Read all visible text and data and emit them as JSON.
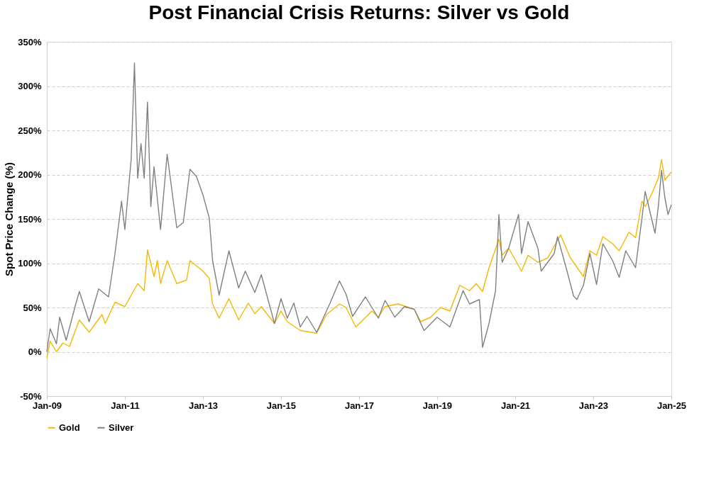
{
  "chart_data": {
    "type": "line",
    "title": "Post Financial Crisis Returns: Silver vs Gold",
    "ylabel": "Spot Price Change (%)",
    "xlim": [
      "2009-01",
      "2025-01"
    ],
    "xticks": [
      {
        "value": "2009-01",
        "label": "Jan-09"
      },
      {
        "value": "2011-01",
        "label": "Jan-11"
      },
      {
        "value": "2013-01",
        "label": "Jan-13"
      },
      {
        "value": "2015-01",
        "label": "Jan-15"
      },
      {
        "value": "2017-01",
        "label": "Jan-17"
      },
      {
        "value": "2019-01",
        "label": "Jan-19"
      },
      {
        "value": "2021-01",
        "label": "Jan-21"
      },
      {
        "value": "2023-01",
        "label": "Jan-23"
      },
      {
        "value": "2025-01",
        "label": "Jan-25"
      }
    ],
    "ylim": [
      -50,
      350
    ],
    "yticks": [
      {
        "value": -50,
        "label": "-50%"
      },
      {
        "value": 0,
        "label": "0%"
      },
      {
        "value": 50,
        "label": "50%"
      },
      {
        "value": 100,
        "label": "100%"
      },
      {
        "value": 150,
        "label": "150%"
      },
      {
        "value": 200,
        "label": "200%"
      },
      {
        "value": 250,
        "label": "250%"
      },
      {
        "value": 300,
        "label": "300%"
      },
      {
        "value": 350,
        "label": "350%"
      }
    ],
    "grid": "y",
    "legend": "bottom",
    "line_style": "solid",
    "marker": "none",
    "series": [
      {
        "name": "Gold",
        "color": "#f5b800",
        "x": [
          "2009-01",
          "2009-02",
          "2009-04",
          "2009-06",
          "2009-08",
          "2009-11",
          "2010-02",
          "2010-06",
          "2010-07",
          "2010-10",
          "2011-01",
          "2011-05",
          "2011-07",
          "2011-08",
          "2011-10",
          "2011-11",
          "2011-12",
          "2012-02",
          "2012-05",
          "2012-08",
          "2012-09",
          "2013-01",
          "2013-03",
          "2013-04",
          "2013-06",
          "2013-09",
          "2013-12",
          "2014-03",
          "2014-05",
          "2014-07",
          "2014-11",
          "2015-01",
          "2015-03",
          "2015-07",
          "2015-12",
          "2016-03",
          "2016-07",
          "2016-09",
          "2016-12",
          "2017-05",
          "2017-07",
          "2017-09",
          "2018-01",
          "2018-06",
          "2018-08",
          "2018-11",
          "2019-02",
          "2019-05",
          "2019-08",
          "2019-11",
          "2020-01",
          "2020-03",
          "2020-05",
          "2020-08",
          "2020-09",
          "2020-11",
          "2021-03",
          "2021-05",
          "2021-08",
          "2021-11",
          "2022-03",
          "2022-06",
          "2022-10",
          "2022-12",
          "2023-02",
          "2023-04",
          "2023-07",
          "2023-09",
          "2023-12",
          "2024-02",
          "2024-04",
          "2024-05",
          "2024-07",
          "2024-09",
          "2024-10",
          "2024-11",
          "2025-01"
        ],
        "values": [
          -7,
          12,
          0,
          10,
          6,
          36,
          22,
          42,
          32,
          56,
          51,
          77,
          69,
          115,
          85,
          103,
          77,
          103,
          77,
          81,
          103,
          91,
          83,
          54,
          38,
          60,
          36,
          55,
          43,
          51,
          32,
          46,
          34,
          24,
          21,
          42,
          54,
          50,
          28,
          46,
          39,
          51,
          54,
          48,
          34,
          39,
          50,
          46,
          75,
          69,
          77,
          68,
          95,
          127,
          109,
          117,
          91,
          109,
          101,
          106,
          132,
          106,
          85,
          114,
          109,
          130,
          122,
          114,
          135,
          129,
          170,
          164,
          178,
          196,
          217,
          194,
          203
        ]
      },
      {
        "name": "Silver",
        "color": "#808080",
        "x": [
          "2009-01",
          "2009-02",
          "2009-04",
          "2009-05",
          "2009-07",
          "2009-10",
          "2009-11",
          "2010-02",
          "2010-05",
          "2010-08",
          "2010-10",
          "2010-12",
          "2011-01",
          "2011-03",
          "2011-04",
          "2011-05",
          "2011-06",
          "2011-07",
          "2011-08",
          "2011-09",
          "2011-10",
          "2011-12",
          "2012-02",
          "2012-05",
          "2012-07",
          "2012-09",
          "2012-11",
          "2013-01",
          "2013-03",
          "2013-04",
          "2013-06",
          "2013-09",
          "2013-12",
          "2014-02",
          "2014-05",
          "2014-07",
          "2014-11",
          "2015-01",
          "2015-03",
          "2015-05",
          "2015-07",
          "2015-09",
          "2015-12",
          "2016-04",
          "2016-07",
          "2016-09",
          "2016-11",
          "2017-03",
          "2017-07",
          "2017-09",
          "2017-12",
          "2018-03",
          "2018-06",
          "2018-09",
          "2019-01",
          "2019-05",
          "2019-09",
          "2019-11",
          "2020-02",
          "2020-03",
          "2020-05",
          "2020-07",
          "2020-08",
          "2020-09",
          "2020-11",
          "2021-02",
          "2021-03",
          "2021-05",
          "2021-08",
          "2021-09",
          "2022-01",
          "2022-02",
          "2022-05",
          "2022-07",
          "2022-08",
          "2022-10",
          "2022-12",
          "2023-02",
          "2023-04",
          "2023-07",
          "2023-09",
          "2023-11",
          "2024-02",
          "2024-04",
          "2024-05",
          "2024-08",
          "2024-09",
          "2024-10",
          "2024-11",
          "2024-12",
          "2025-01"
        ],
        "values": [
          0,
          26,
          9,
          39,
          13,
          55,
          68,
          34,
          71,
          62,
          111,
          170,
          138,
          217,
          326,
          196,
          235,
          196,
          282,
          164,
          209,
          138,
          223,
          140,
          146,
          206,
          198,
          177,
          151,
          103,
          64,
          114,
          72,
          91,
          67,
          87,
          32,
          60,
          38,
          55,
          28,
          40,
          22,
          54,
          80,
          65,
          40,
          62,
          38,
          58,
          39,
          51,
          48,
          24,
          39,
          28,
          69,
          54,
          59,
          5,
          32,
          69,
          155,
          101,
          117,
          155,
          111,
          147,
          117,
          91,
          111,
          130,
          91,
          63,
          59,
          75,
          111,
          76,
          122,
          103,
          84,
          114,
          95,
          151,
          181,
          134,
          164,
          205,
          174,
          155,
          166
        ]
      }
    ]
  }
}
